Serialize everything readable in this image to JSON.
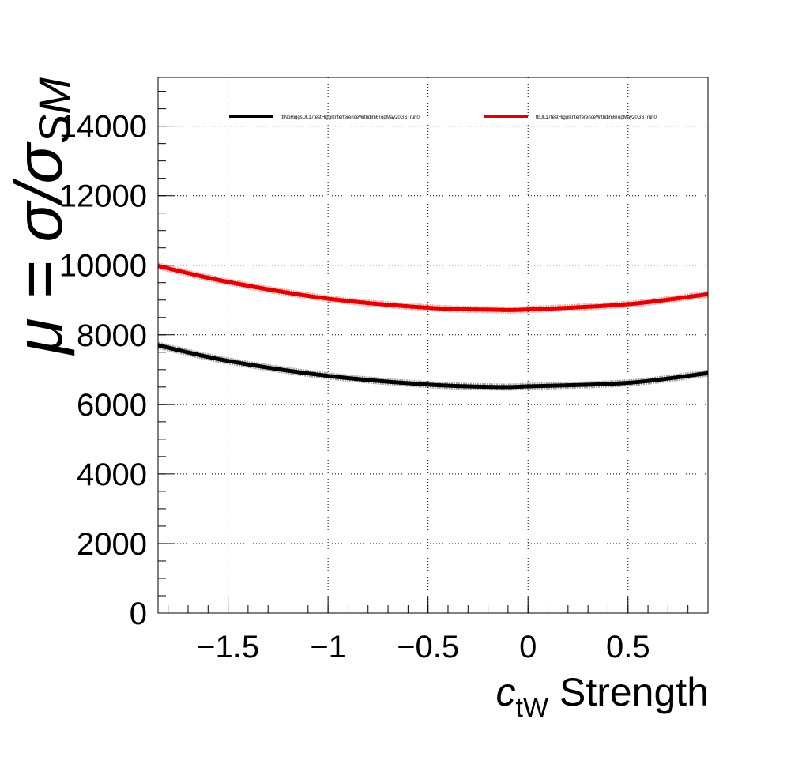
{
  "chart_data": {
    "type": "line",
    "title": "",
    "xlabel": {
      "symbol": "c",
      "subscript": "tW",
      "suffix": " Strength"
    },
    "ylabel": {
      "prefix": "μ = σ/σ",
      "subscript": "SM"
    },
    "xlim": [
      -1.85,
      0.9
    ],
    "ylim": [
      0,
      15400
    ],
    "x_ticks": [
      -1.5,
      -1,
      -0.5,
      0,
      0.5
    ],
    "x_tick_labels": [
      "−1.5",
      "−1",
      "−0.5",
      "0",
      "0.5"
    ],
    "y_ticks": [
      0,
      2000,
      4000,
      6000,
      8000,
      10000,
      12000,
      14000
    ],
    "y_tick_labels": [
      "0",
      "2000",
      "4000",
      "6000",
      "8000",
      "10000",
      "12000",
      "14000"
    ],
    "grid": true,
    "legend_position": "top",
    "series": [
      {
        "name": "ttlNoHiggsUL17testHiggsInterferenceWithdim6TopMay20GSTrun0",
        "color": "#000000",
        "x": [
          -1.85,
          -1.5,
          -1.0,
          -0.5,
          -0.15,
          0.0,
          0.5,
          0.9
        ],
        "y": [
          7700,
          7250,
          6820,
          6570,
          6500,
          6520,
          6620,
          6900
        ]
      },
      {
        "name": "ttlUL17testHiggsInterferenceWithdim6TopMay20GSTrun0",
        "color": "#e00000",
        "x": [
          -1.85,
          -1.5,
          -1.0,
          -0.5,
          -0.15,
          0.0,
          0.5,
          0.9
        ],
        "y": [
          9980,
          9520,
          9040,
          8780,
          8720,
          8730,
          8880,
          9170
        ]
      }
    ]
  }
}
